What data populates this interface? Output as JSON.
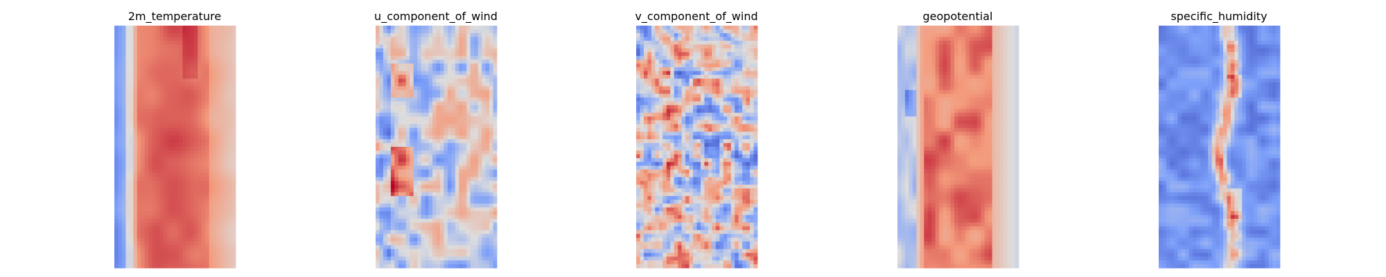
{
  "chart_data": [
    {
      "type": "heatmap",
      "title": "2m_temperature",
      "colormap": "coolwarm",
      "axes": "off",
      "pattern": "temperature"
    },
    {
      "type": "heatmap",
      "title": "u_component_of_wind",
      "colormap": "coolwarm",
      "axes": "off",
      "pattern": "u_wind"
    },
    {
      "type": "heatmap",
      "title": "v_component_of_wind",
      "colormap": "coolwarm",
      "axes": "off",
      "pattern": "v_wind"
    },
    {
      "type": "heatmap",
      "title": "geopotential",
      "colormap": "coolwarm",
      "axes": "off",
      "pattern": "geopotential"
    },
    {
      "type": "heatmap",
      "title": "specific_humidity",
      "colormap": "coolwarm",
      "axes": "off",
      "pattern": "humidity"
    }
  ]
}
